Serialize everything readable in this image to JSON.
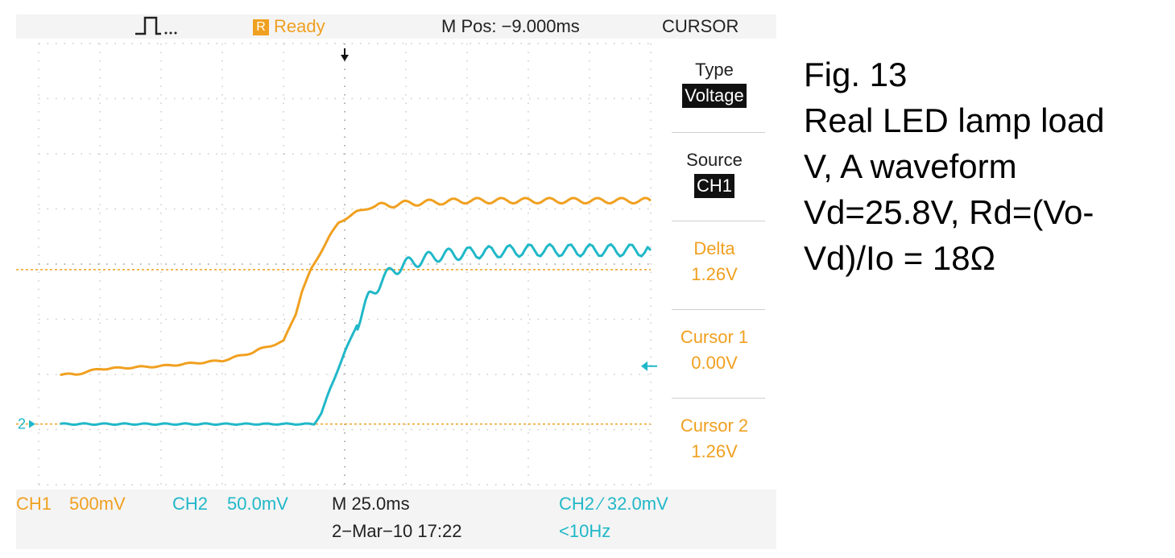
{
  "colors": {
    "ch1": "#f0a020",
    "ch2": "#20b8c8",
    "text": "#222222",
    "menu_bg": "#111111"
  },
  "topbar": {
    "trigger_icon": "pulse-trigger-icon",
    "acquisition_badge": "R",
    "acquisition_status": "Ready",
    "m_pos": "M Pos: −9.000ms",
    "menu_title": "CURSOR"
  },
  "menu": {
    "type_label": "Type",
    "type_value": "Voltage",
    "source_label": "Source",
    "source_value": "CH1",
    "delta_label": "Delta",
    "delta_value": "1.26V",
    "cursor1_label": "Cursor 1",
    "cursor1_value": "0.00V",
    "cursor2_label": "Cursor 2",
    "cursor2_value": "1.26V"
  },
  "bottom": {
    "ch1_label": "CH1",
    "ch1_scale": "500mV",
    "ch2_label": "CH2",
    "ch2_scale": "50.0mV",
    "timebase": "M 25.0ms",
    "trigger": "CH2 ⁄ 32.0mV",
    "date_time": "2−Mar−10 17:22",
    "freq": "<10Hz"
  },
  "caption": {
    "line1": "Fig. 13",
    "line2": "Real LED lamp load",
    "line3": "V, A waveform",
    "line4": "Vd=25.8V, Rd=(Vo-",
    "line5": "Vd)/Io = 18Ω"
  },
  "chart_data": {
    "type": "line",
    "grid": true,
    "x_divisions": 10,
    "y_divisions": 8,
    "x_range_div": [
      0,
      10
    ],
    "y_range_div": [
      -4,
      4
    ],
    "ch2_marker_label": "2",
    "series": [
      {
        "name": "CH1",
        "color": "#f0a020",
        "x": [
          0.35,
          0.6,
          1.0,
          2.0,
          3.0,
          3.5,
          3.6,
          4.0,
          4.2,
          4.3,
          4.45,
          4.6,
          4.75,
          4.9,
          5.2,
          5.5,
          6.0,
          7.0,
          8.0,
          9.0,
          10.0
        ],
        "y": [
          -2.0,
          -2.0,
          -1.9,
          -1.85,
          -1.75,
          -1.6,
          -1.55,
          -1.4,
          -0.9,
          -0.5,
          -0.1,
          0.2,
          0.5,
          0.75,
          0.95,
          1.05,
          1.1,
          1.15,
          1.15,
          1.15,
          1.15
        ]
      },
      {
        "name": "CH2",
        "color": "#20b8c8",
        "x": [
          0.35,
          1.0,
          2.0,
          3.0,
          4.5,
          4.62,
          4.75,
          5.0,
          5.2,
          5.4,
          5.6,
          5.8,
          6.0,
          6.5,
          7.0,
          8.0,
          9.0,
          10.0
        ],
        "y": [
          -2.9,
          -2.9,
          -2.9,
          -2.9,
          -2.9,
          -2.7,
          -2.3,
          -1.6,
          -1.1,
          -0.6,
          -0.3,
          -0.1,
          0.0,
          0.15,
          0.2,
          0.25,
          0.25,
          0.25
        ]
      }
    ],
    "cursors": [
      {
        "name": "Cursor 1",
        "y": -2.9
      },
      {
        "name": "Cursor 2",
        "y": -0.1
      }
    ],
    "trigger_marker_y": -1.85
  }
}
